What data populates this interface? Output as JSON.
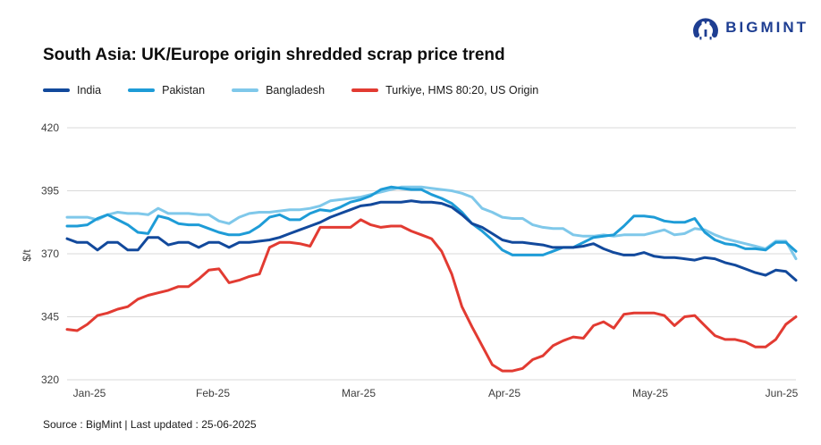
{
  "logo": {
    "brand": "BIGMINT",
    "color": "#1e3e92"
  },
  "header": {
    "title": "South Asia: UK/Europe origin shredded scrap price trend"
  },
  "footer": {
    "source": "Source : BigMint | Last updated : 25-06-2025"
  },
  "chart_data": {
    "type": "line",
    "title": "South Asia: UK/Europe origin shredded scrap price trend",
    "xlabel": "",
    "ylabel": "$/t",
    "ylim": [
      320,
      420
    ],
    "yticks": [
      320,
      345,
      370,
      395,
      420
    ],
    "xticklabels": [
      "Jan-25",
      "Feb-25",
      "Mar-25",
      "Apr-25",
      "May-25",
      "Jun-25"
    ],
    "grid": "horizontal",
    "legend_position": "top-left",
    "series": [
      {
        "name": "Bangladesh",
        "color": "#7fc8ea",
        "values": [
          384.5,
          384.5,
          384.5,
          383.5,
          385.5,
          386.5,
          386,
          386,
          385.5,
          388,
          386,
          386,
          386,
          385.5,
          385.5,
          383,
          382,
          384.5,
          386,
          386.5,
          386.5,
          387,
          387.5,
          387.5,
          388,
          389,
          391,
          391.5,
          392,
          392.5,
          393.5,
          394.5,
          395.5,
          396.5,
          396.5,
          396.5,
          396,
          395.5,
          395,
          394,
          392.5,
          388,
          386.5,
          384.5,
          384,
          384,
          381.5,
          380.5,
          380,
          380,
          377.5,
          377,
          377,
          377.5,
          377,
          377.5,
          377.5,
          377.5,
          378.5,
          379.5,
          377.5,
          378,
          380,
          379.5,
          377.5,
          376,
          375,
          374,
          373,
          372,
          375,
          375,
          368
        ]
      },
      {
        "name": "Pakistan",
        "color": "#1e9cd7",
        "values": [
          381,
          381,
          381.5,
          384,
          385.5,
          383.5,
          381.5,
          378.5,
          378,
          385,
          384,
          382,
          381.5,
          381.5,
          380,
          378.5,
          377.5,
          377.5,
          378.5,
          381,
          384.5,
          385.5,
          383.5,
          383.5,
          386,
          387.5,
          387,
          388.5,
          390.5,
          391.5,
          393,
          395.5,
          396.5,
          396,
          395.5,
          395.5,
          393.5,
          392,
          390,
          386.5,
          382,
          379,
          375.5,
          371.5,
          369.5,
          369.5,
          369.5,
          369.5,
          371,
          372.5,
          372.5,
          374.5,
          376.5,
          377,
          377.5,
          381,
          385,
          385,
          384.5,
          383,
          382.5,
          382.5,
          384,
          378.5,
          375.5,
          374,
          373.5,
          372,
          372,
          371.5,
          374.5,
          374.5,
          371
        ]
      },
      {
        "name": "India",
        "color": "#12499c",
        "values": [
          376,
          374.5,
          374.5,
          371.5,
          374.5,
          374.5,
          371.5,
          371.5,
          376.5,
          376.5,
          373.5,
          374.5,
          374.5,
          372.5,
          374.5,
          374.5,
          372.5,
          374.5,
          374.5,
          375,
          375.5,
          376.5,
          378,
          379.5,
          381,
          382.5,
          384.5,
          386,
          387.5,
          389,
          389.5,
          390.5,
          390.5,
          390.5,
          391,
          390.5,
          390.5,
          390,
          388.5,
          385.5,
          382,
          380.5,
          378,
          375.5,
          374.5,
          374.5,
          374,
          373.5,
          372.5,
          372.5,
          372.5,
          373,
          374,
          372,
          370.5,
          369.5,
          369.5,
          370.5,
          369,
          368.5,
          368.5,
          368,
          367.5,
          368.5,
          368,
          366.5,
          365.5,
          364,
          362.5,
          361.5,
          363.5,
          363,
          359.5
        ]
      },
      {
        "name": "Turkiye, HMS 80:20, US Origin",
        "color": "#e23b32",
        "values": [
          340,
          339.5,
          342,
          345.5,
          346.5,
          348,
          349,
          352,
          353.5,
          354.5,
          355.5,
          357,
          357,
          360,
          363.5,
          364,
          358.5,
          359.5,
          361,
          362,
          372.5,
          374.5,
          374.5,
          374,
          373,
          380.5,
          380.5,
          380.5,
          380.5,
          383.5,
          381.5,
          380.5,
          381,
          381,
          379,
          377.5,
          376,
          371,
          362,
          349,
          341,
          333.5,
          326,
          323.5,
          323.5,
          324.5,
          328,
          329.5,
          333.5,
          335.5,
          337,
          336.5,
          341.5,
          343,
          340.5,
          346,
          346.5,
          346.5,
          346.5,
          345.5,
          341.5,
          345,
          345.5,
          341.5,
          337.5,
          336,
          336,
          335,
          333,
          333,
          336,
          342,
          345
        ]
      }
    ]
  }
}
